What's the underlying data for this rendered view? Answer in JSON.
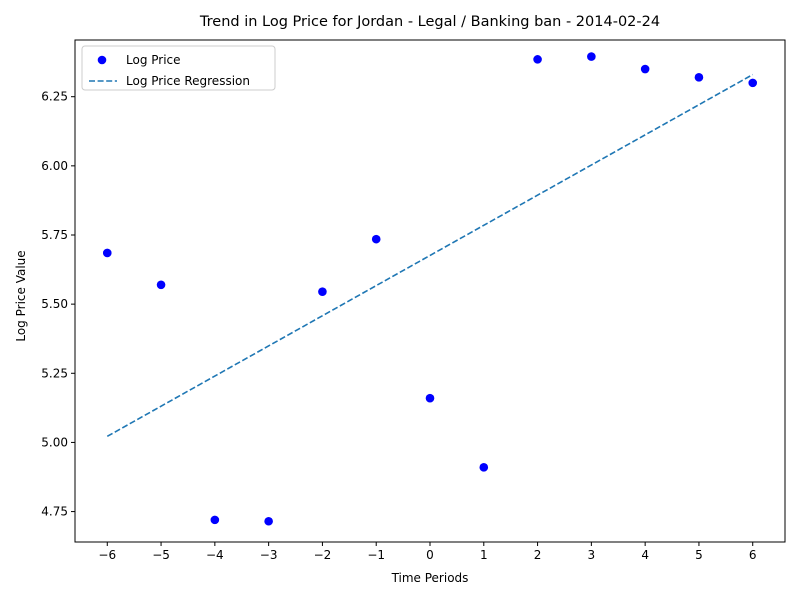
{
  "chart_data": {
    "type": "scatter",
    "title": "Trend in Log Price for Jordan - Legal /  Banking ban - 2014-02-24",
    "xlabel": "Time Periods",
    "ylabel": "Log Price Value",
    "xlim": [
      -6.6,
      6.6
    ],
    "ylim": [
      4.64,
      6.455
    ],
    "xticks": [
      -6,
      -5,
      -4,
      -3,
      -2,
      -1,
      0,
      1,
      2,
      3,
      4,
      5,
      6
    ],
    "yticks": [
      4.75,
      5.0,
      5.25,
      5.5,
      5.75,
      6.0,
      6.25
    ],
    "grid": false,
    "legend_position": "top-left",
    "series": [
      {
        "name": "Log Price",
        "kind": "scatter",
        "color": "#0000ff",
        "points": [
          {
            "x": -6,
            "y": 5.685
          },
          {
            "x": -5,
            "y": 5.57
          },
          {
            "x": -4,
            "y": 4.72
          },
          {
            "x": -3,
            "y": 4.715
          },
          {
            "x": -2,
            "y": 5.545
          },
          {
            "x": -1,
            "y": 5.735
          },
          {
            "x": 0,
            "y": 5.16
          },
          {
            "x": 1,
            "y": 4.91
          },
          {
            "x": 2,
            "y": 6.385
          },
          {
            "x": 3,
            "y": 6.395
          },
          {
            "x": 4,
            "y": 6.35
          },
          {
            "x": 5,
            "y": 6.32
          },
          {
            "x": 6,
            "y": 6.3
          }
        ]
      },
      {
        "name": "Log Price Regression",
        "kind": "line",
        "style": "dashed",
        "color": "#1f77b4",
        "points": [
          {
            "x": -6,
            "y": 5.022
          },
          {
            "x": 6,
            "y": 6.33
          }
        ]
      }
    ]
  }
}
